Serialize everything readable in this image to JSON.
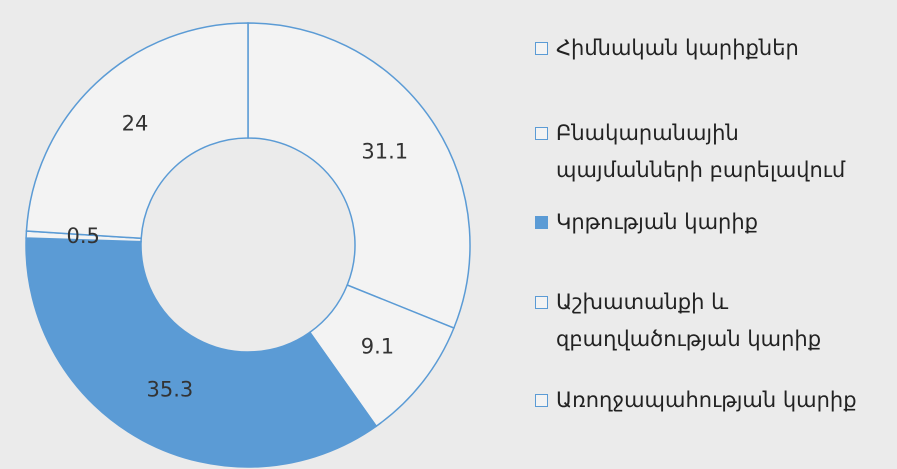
{
  "chart_data": {
    "type": "donut",
    "categories": [
      "Հիմնական կարիքներ",
      "Բնակարանային պայմանների բարելավում",
      "Կրթության կարիք",
      "Աշխատանքի և զբաղվածության կարիք",
      "Առողջապահության կարիք"
    ],
    "values": [
      31.1,
      9.1,
      35.3,
      0.5,
      24
    ],
    "colors": [
      "#f3f3f3",
      "#f3f3f3",
      "#5b9bd5",
      "#f3f3f3",
      "#f3f3f3"
    ],
    "edge_color": "#5b9bd5",
    "legend": "right"
  }
}
